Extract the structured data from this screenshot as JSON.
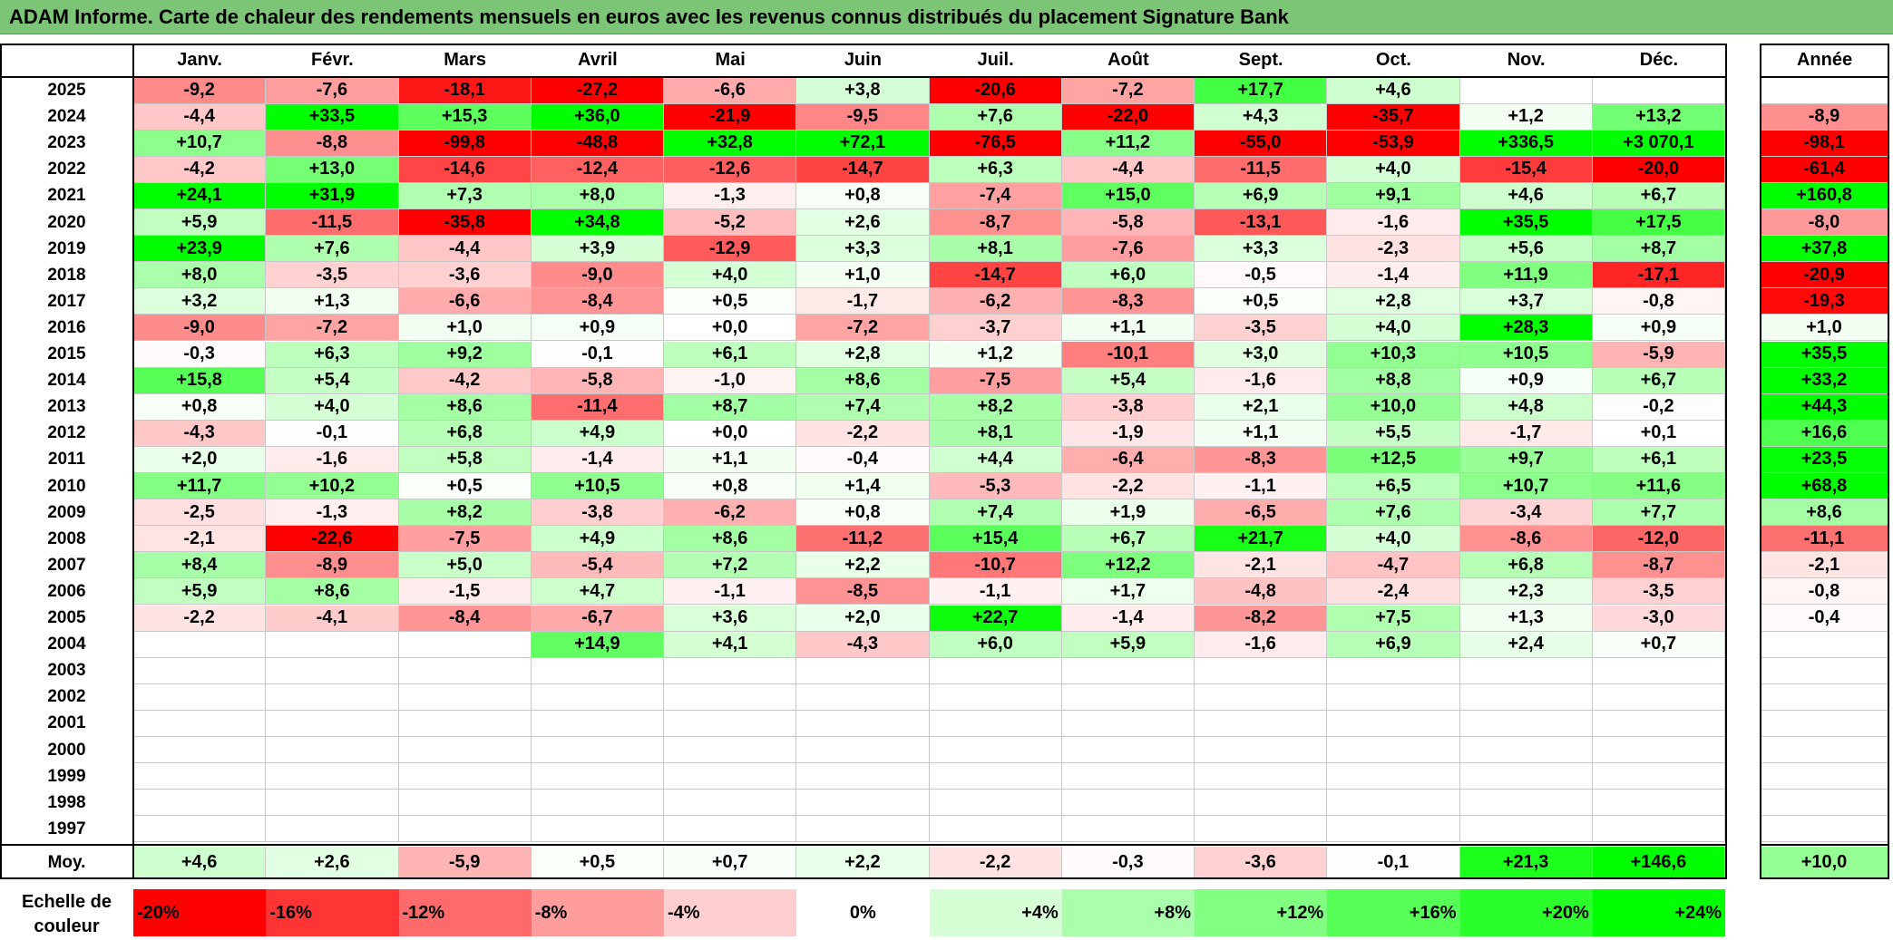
{
  "title": "ADAM Informe. Carte de chaleur des rendements mensuels en euros avec les revenus connus distribués du placement Signature Bank",
  "chart_data": {
    "type": "heatmap",
    "title": "ADAM Informe. Carte de chaleur des rendements mensuels en euros avec les revenus connus distribués du placement Signature Bank",
    "columns": [
      "Janv.",
      "Févr.",
      "Mars",
      "Avril",
      "Mai",
      "Juin",
      "Juil.",
      "Août",
      "Sept.",
      "Oct.",
      "Nov.",
      "Déc."
    ],
    "year_header": "Année",
    "rows": [
      {
        "year": "2025",
        "values": [
          "-9,2",
          "-7,6",
          "-18,1",
          "-27,2",
          "-6,6",
          "+3,8",
          "-20,6",
          "-7,2",
          "+17,7",
          "+4,6",
          "",
          ""
        ],
        "annual": ""
      },
      {
        "year": "2024",
        "values": [
          "-4,4",
          "+33,5",
          "+15,3",
          "+36,0",
          "-21,9",
          "-9,5",
          "+7,6",
          "-22,0",
          "+4,3",
          "-35,7",
          "+1,2",
          "+13,2"
        ],
        "annual": "-8,9"
      },
      {
        "year": "2023",
        "values": [
          "+10,7",
          "-8,8",
          "-99,8",
          "-48,8",
          "+32,8",
          "+72,1",
          "-76,5",
          "+11,2",
          "-55,0",
          "-53,9",
          "+336,5",
          "+3 070,1"
        ],
        "annual": "-98,1"
      },
      {
        "year": "2022",
        "values": [
          "-4,2",
          "+13,0",
          "-14,6",
          "-12,4",
          "-12,6",
          "-14,7",
          "+6,3",
          "-4,4",
          "-11,5",
          "+4,0",
          "-15,4",
          "-20,0"
        ],
        "annual": "-61,4"
      },
      {
        "year": "2021",
        "values": [
          "+24,1",
          "+31,9",
          "+7,3",
          "+8,0",
          "-1,3",
          "+0,8",
          "-7,4",
          "+15,0",
          "+6,9",
          "+9,1",
          "+4,6",
          "+6,7"
        ],
        "annual": "+160,8"
      },
      {
        "year": "2020",
        "values": [
          "+5,9",
          "-11,5",
          "-35,8",
          "+34,8",
          "-5,2",
          "+2,6",
          "-8,7",
          "-5,8",
          "-13,1",
          "-1,6",
          "+35,5",
          "+17,5"
        ],
        "annual": "-8,0"
      },
      {
        "year": "2019",
        "values": [
          "+23,9",
          "+7,6",
          "-4,4",
          "+3,9",
          "-12,9",
          "+3,3",
          "+8,1",
          "-7,6",
          "+3,3",
          "-2,3",
          "+5,6",
          "+8,7"
        ],
        "annual": "+37,8"
      },
      {
        "year": "2018",
        "values": [
          "+8,0",
          "-3,5",
          "-3,6",
          "-9,0",
          "+4,0",
          "+1,0",
          "-14,7",
          "+6,0",
          "-0,5",
          "-1,4",
          "+11,9",
          "-17,1"
        ],
        "annual": "-20,9"
      },
      {
        "year": "2017",
        "values": [
          "+3,2",
          "+1,3",
          "-6,6",
          "-8,4",
          "+0,5",
          "-1,7",
          "-6,2",
          "-8,3",
          "+0,5",
          "+2,8",
          "+3,7",
          "-0,8"
        ],
        "annual": "-19,3"
      },
      {
        "year": "2016",
        "values": [
          "-9,0",
          "-7,2",
          "+1,0",
          "+0,9",
          "+0,0",
          "-7,2",
          "-3,7",
          "+1,1",
          "-3,5",
          "+4,0",
          "+28,3",
          "+0,9"
        ],
        "annual": "+1,0"
      },
      {
        "year": "2015",
        "values": [
          "-0,3",
          "+6,3",
          "+9,2",
          "-0,1",
          "+6,1",
          "+2,8",
          "+1,2",
          "-10,1",
          "+3,0",
          "+10,3",
          "+10,5",
          "-5,9"
        ],
        "annual": "+35,5"
      },
      {
        "year": "2014",
        "values": [
          "+15,8",
          "+5,4",
          "-4,2",
          "-5,8",
          "-1,0",
          "+8,6",
          "-7,5",
          "+5,4",
          "-1,6",
          "+8,8",
          "+0,9",
          "+6,7"
        ],
        "annual": "+33,2"
      },
      {
        "year": "2013",
        "values": [
          "+0,8",
          "+4,0",
          "+8,6",
          "-11,4",
          "+8,7",
          "+7,4",
          "+8,2",
          "-3,8",
          "+2,1",
          "+10,0",
          "+4,8",
          "-0,2"
        ],
        "annual": "+44,3"
      },
      {
        "year": "2012",
        "values": [
          "-4,3",
          "-0,1",
          "+6,8",
          "+4,9",
          "+0,0",
          "-2,2",
          "+8,1",
          "-1,9",
          "+1,1",
          "+5,5",
          "-1,7",
          "+0,1"
        ],
        "annual": "+16,6"
      },
      {
        "year": "2011",
        "values": [
          "+2,0",
          "-1,6",
          "+5,8",
          "-1,4",
          "+1,1",
          "-0,4",
          "+4,4",
          "-6,4",
          "-8,3",
          "+12,5",
          "+9,7",
          "+6,1"
        ],
        "annual": "+23,5"
      },
      {
        "year": "2010",
        "values": [
          "+11,7",
          "+10,2",
          "+0,5",
          "+10,5",
          "+0,8",
          "+1,4",
          "-5,3",
          "-2,2",
          "-1,1",
          "+6,5",
          "+10,7",
          "+11,6"
        ],
        "annual": "+68,8"
      },
      {
        "year": "2009",
        "values": [
          "-2,5",
          "-1,3",
          "+8,2",
          "-3,8",
          "-6,2",
          "+0,8",
          "+7,4",
          "+1,9",
          "-6,5",
          "+7,6",
          "-3,4",
          "+7,7"
        ],
        "annual": "+8,6"
      },
      {
        "year": "2008",
        "values": [
          "-2,1",
          "-22,6",
          "-7,5",
          "+4,9",
          "+8,6",
          "-11,2",
          "+15,4",
          "+6,7",
          "+21,7",
          "+4,0",
          "-8,6",
          "-12,0"
        ],
        "annual": "-11,1"
      },
      {
        "year": "2007",
        "values": [
          "+8,4",
          "-8,9",
          "+5,0",
          "-5,4",
          "+7,2",
          "+2,2",
          "-10,7",
          "+12,2",
          "-2,1",
          "-4,7",
          "+6,8",
          "-8,7"
        ],
        "annual": "-2,1"
      },
      {
        "year": "2006",
        "values": [
          "+5,9",
          "+8,6",
          "-1,5",
          "+4,7",
          "-1,1",
          "-8,5",
          "-1,1",
          "+1,7",
          "-4,8",
          "-2,4",
          "+2,3",
          "-3,5"
        ],
        "annual": "-0,8"
      },
      {
        "year": "2005",
        "values": [
          "-2,2",
          "-4,1",
          "-8,4",
          "-6,7",
          "+3,6",
          "+2,0",
          "+22,7",
          "-1,4",
          "-8,2",
          "+7,5",
          "+1,3",
          "-3,0"
        ],
        "annual": "-0,4"
      },
      {
        "year": "2004",
        "values": [
          "",
          "",
          "",
          "+14,9",
          "+4,1",
          "-4,3",
          "+6,0",
          "+5,9",
          "-1,6",
          "+6,9",
          "+2,4",
          "+0,7"
        ],
        "annual": ""
      },
      {
        "year": "2003",
        "values": [
          "",
          "",
          "",
          "",
          "",
          "",
          "",
          "",
          "",
          "",
          "",
          ""
        ],
        "annual": ""
      },
      {
        "year": "2002",
        "values": [
          "",
          "",
          "",
          "",
          "",
          "",
          "",
          "",
          "",
          "",
          "",
          ""
        ],
        "annual": ""
      },
      {
        "year": "2001",
        "values": [
          "",
          "",
          "",
          "",
          "",
          "",
          "",
          "",
          "",
          "",
          "",
          ""
        ],
        "annual": ""
      },
      {
        "year": "2000",
        "values": [
          "",
          "",
          "",
          "",
          "",
          "",
          "",
          "",
          "",
          "",
          "",
          ""
        ],
        "annual": ""
      },
      {
        "year": "1999",
        "values": [
          "",
          "",
          "",
          "",
          "",
          "",
          "",
          "",
          "",
          "",
          "",
          ""
        ],
        "annual": ""
      },
      {
        "year": "1998",
        "values": [
          "",
          "",
          "",
          "",
          "",
          "",
          "",
          "",
          "",
          "",
          "",
          ""
        ],
        "annual": ""
      },
      {
        "year": "1997",
        "values": [
          "",
          "",
          "",
          "",
          "",
          "",
          "",
          "",
          "",
          "",
          "",
          ""
        ],
        "annual": ""
      }
    ],
    "average": {
      "label": "Moy.",
      "values": [
        "+4,6",
        "+2,6",
        "-5,9",
        "+0,5",
        "+0,7",
        "+2,2",
        "-2,2",
        "-0,3",
        "-3,6",
        "-0,1",
        "+21,3",
        "+146,6"
      ],
      "annual": "+10,0"
    },
    "color_scale": {
      "label": "Echelle de couleur",
      "stops": [
        "-20%",
        "-16%",
        "-12%",
        "-8%",
        "-4%",
        "0%",
        "+4%",
        "+8%",
        "+12%",
        "+16%",
        "+20%",
        "+24%"
      ],
      "colors": [
        "#ff0000",
        "#ff3535",
        "#ff6a6a",
        "#ff9d9d",
        "#ffcfcf",
        "#ffffff",
        "#d6ffd6",
        "#aaffaa",
        "#80ff80",
        "#55ff55",
        "#2bff2b",
        "#00ff00"
      ]
    }
  }
}
